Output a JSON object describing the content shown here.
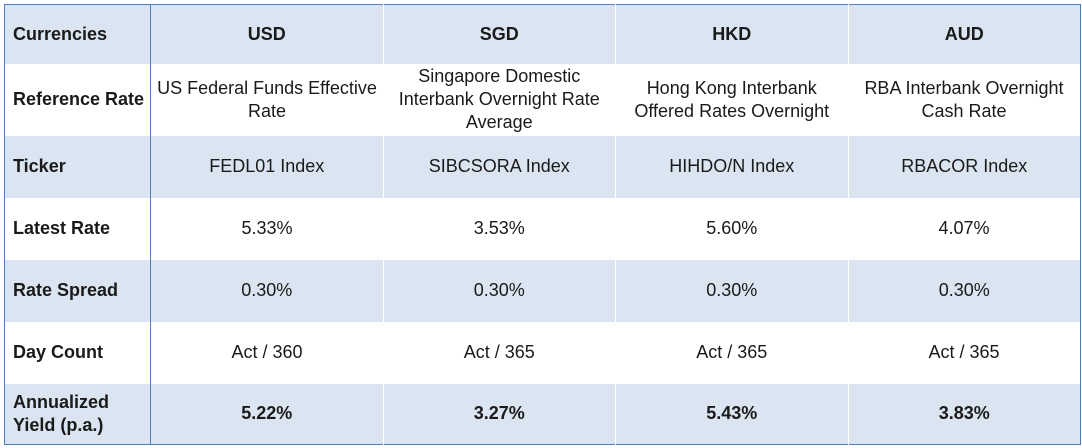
{
  "table": {
    "corner_label": "Currencies",
    "columns": [
      "USD",
      "SGD",
      "HKD",
      "AUD"
    ],
    "rows": [
      {
        "label": "Reference Rate",
        "cells": [
          "US Federal Funds Effective Rate",
          "Singapore Domestic Interbank Overnight Rate Average",
          "Hong Kong Interbank Offered Rates Overnight",
          "RBA Interbank Overnight Cash Rate"
        ]
      },
      {
        "label": "Ticker",
        "cells": [
          "FEDL01 Index",
          "SIBCSORA Index",
          "HIHDO/N Index",
          "RBACOR Index"
        ]
      },
      {
        "label": "Latest Rate",
        "cells": [
          "5.33%",
          "3.53%",
          "5.60%",
          "4.07%"
        ]
      },
      {
        "label": "Rate Spread",
        "cells": [
          "0.30%",
          "0.30%",
          "0.30%",
          "0.30%"
        ]
      },
      {
        "label": "Day Count",
        "cells": [
          "Act / 360",
          "Act / 365",
          "Act / 365",
          "Act / 365"
        ]
      },
      {
        "label": "Annualized Yield (p.a.)",
        "cells": [
          "5.22%",
          "3.27%",
          "5.43%",
          "3.83%"
        ]
      }
    ]
  },
  "colors": {
    "shaded_row": "#dbe5f1",
    "border": "#4f7fbd"
  }
}
